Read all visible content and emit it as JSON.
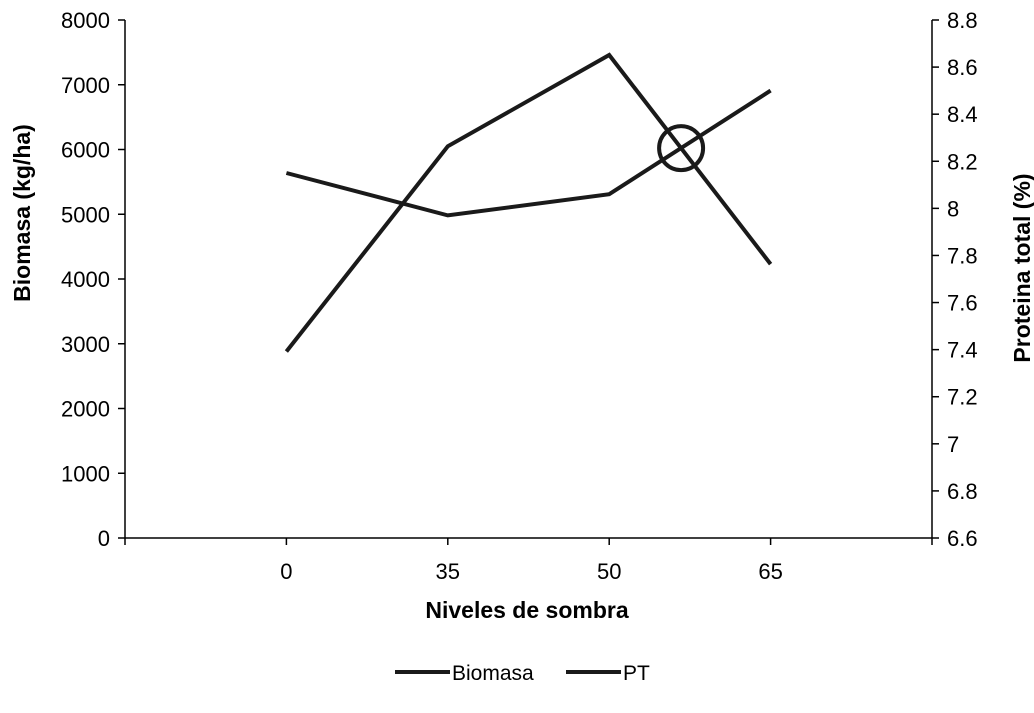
{
  "chart_data": {
    "type": "line",
    "title": "",
    "xlabel": "Niveles de sombra",
    "ylabel_left": "Biomasa (kg/ha)",
    "ylabel_right": "Proteina total (%)",
    "categories": [
      "0",
      "35",
      "50",
      "65"
    ],
    "y_left_ticks": [
      "0",
      "1000",
      "2000",
      "3000",
      "4000",
      "5000",
      "6000",
      "7000",
      "8000"
    ],
    "y_right_ticks": [
      "6.6",
      "6.8",
      "7",
      "7.2",
      "7.4",
      "7.6",
      "7.8",
      "8",
      "8.2",
      "8.4",
      "8.6",
      "8.8"
    ],
    "ylim_left": [
      0,
      8000
    ],
    "ylim_right": [
      6.6,
      8.8
    ],
    "series": [
      {
        "name": "Biomasa",
        "axis": "left",
        "values": [
          2880,
          6050,
          7460,
          4230
        ],
        "color": "#1a1a1a"
      },
      {
        "name": "PT",
        "axis": "right",
        "values": [
          8.15,
          7.97,
          8.06,
          8.5
        ],
        "color": "#1a1a1a"
      }
    ],
    "annotation": {
      "type": "circle",
      "x_between": [
        "50",
        "65"
      ],
      "marks": "series crossing"
    },
    "legend_position": "bottom-center",
    "grid": false
  }
}
